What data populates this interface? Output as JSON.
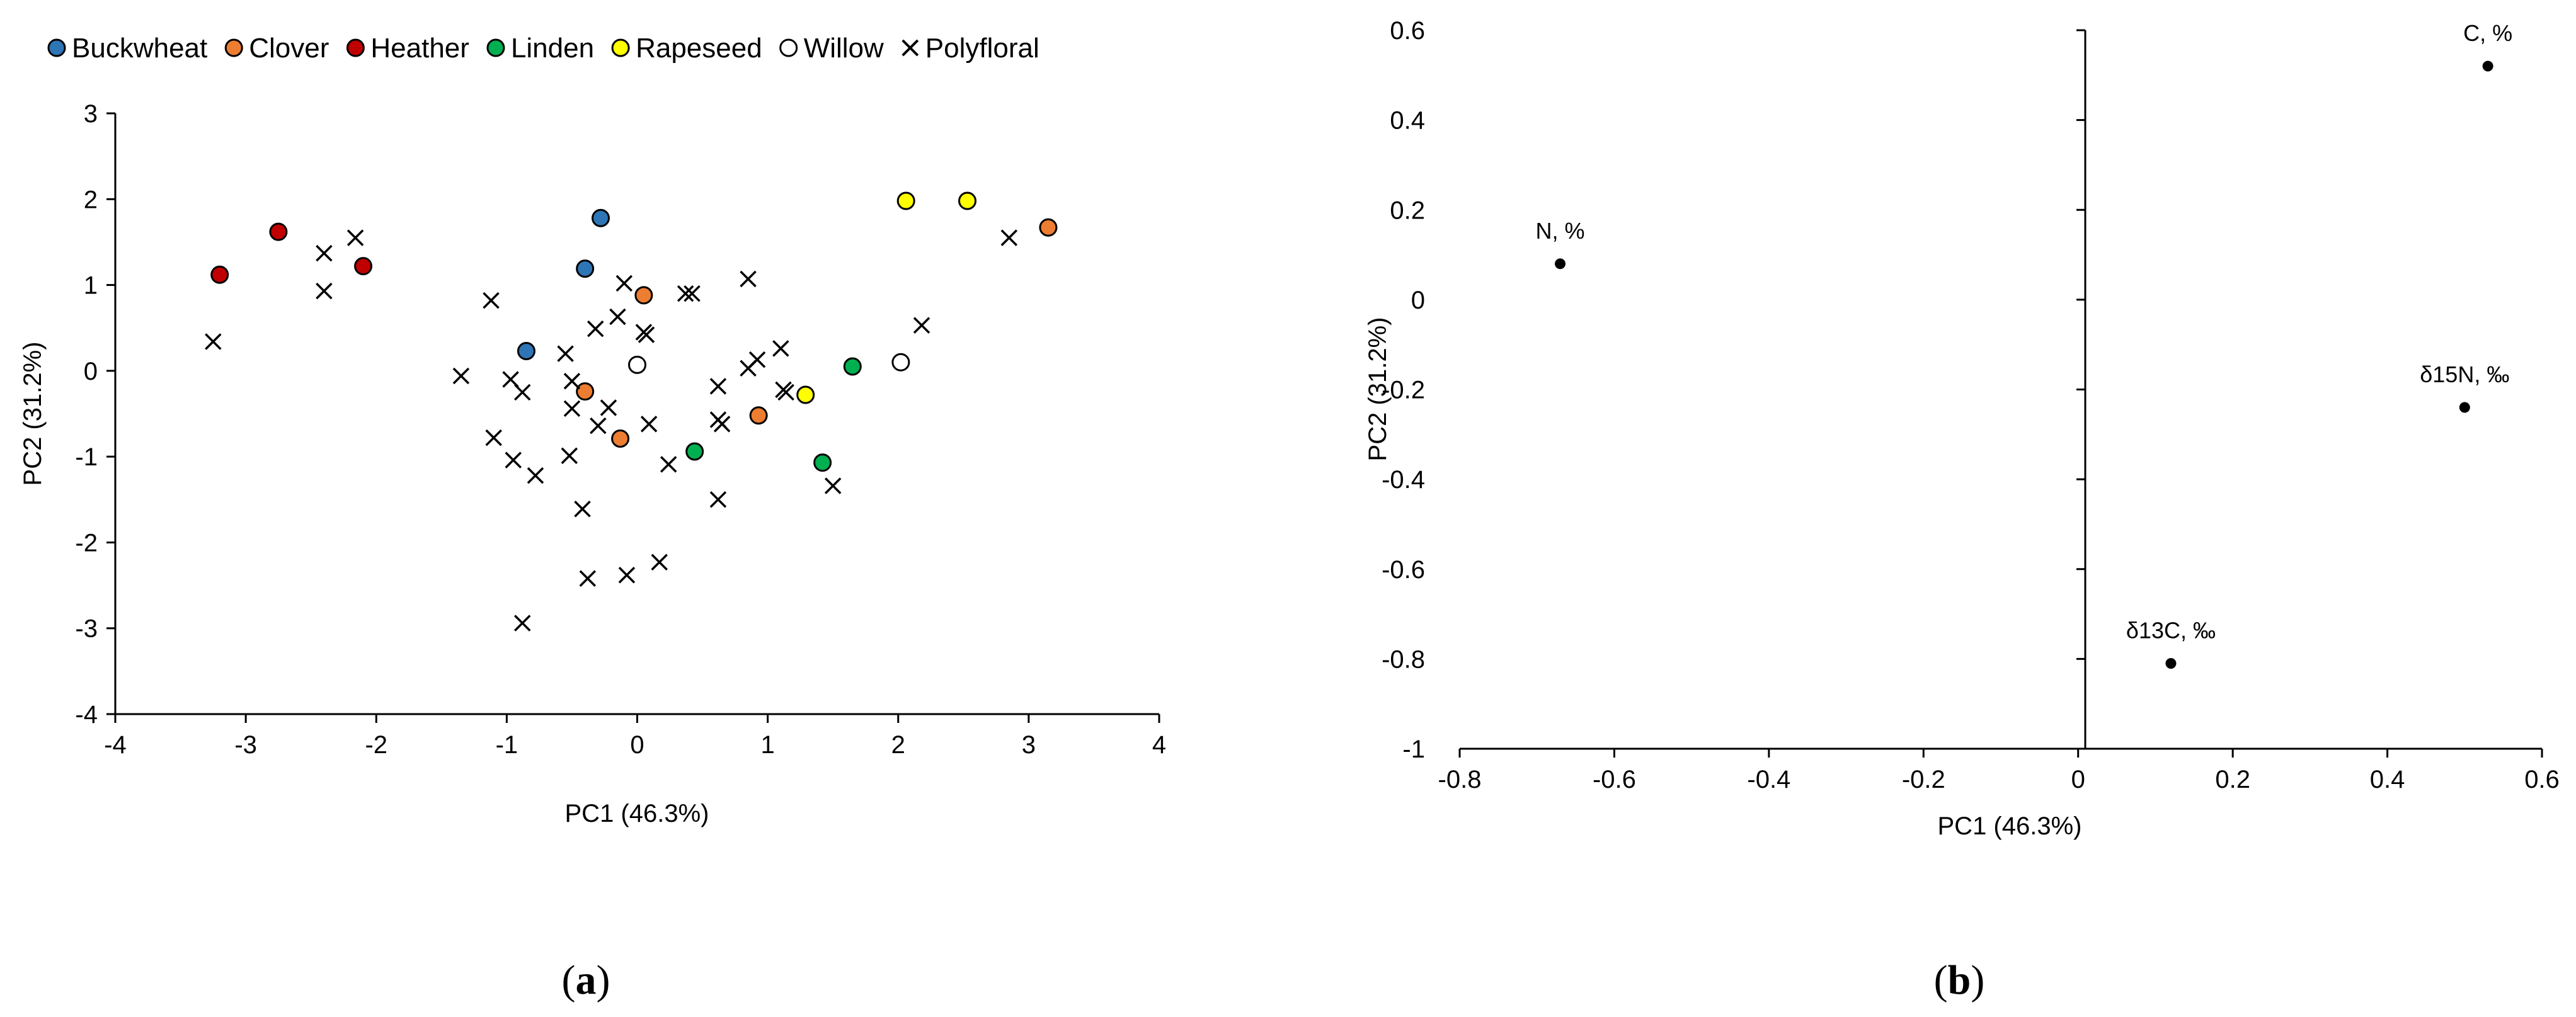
{
  "chart_data": [
    {
      "type": "scatter",
      "panel_label": "(a)",
      "panel_letter": "a",
      "xlabel": "PC1 (46.3%)",
      "ylabel": "PC2 (31.2%)",
      "xlim": [
        -4,
        4
      ],
      "ylim": [
        -4,
        3
      ],
      "xticks": [
        -4,
        -3,
        -2,
        -1,
        0,
        1,
        2,
        3,
        4
      ],
      "yticks": [
        -4,
        -3,
        -2,
        -1,
        0,
        1,
        2,
        3
      ],
      "grid": false,
      "legend_position": "top",
      "series": [
        {
          "name": "Buckwheat",
          "marker": "circle",
          "color": "#2e75b6",
          "points": [
            [
              -0.28,
              1.78
            ],
            [
              -0.4,
              1.19
            ],
            [
              -0.85,
              0.23
            ]
          ]
        },
        {
          "name": "Clover",
          "marker": "circle",
          "color": "#ed7d31",
          "points": [
            [
              0.05,
              0.88
            ],
            [
              -0.4,
              -0.24
            ],
            [
              -0.13,
              -0.79
            ],
            [
              0.93,
              -0.52
            ],
            [
              3.15,
              1.67
            ]
          ]
        },
        {
          "name": "Heather",
          "marker": "circle",
          "color": "#c00000",
          "points": [
            [
              -3.2,
              1.12
            ],
            [
              -2.75,
              1.62
            ],
            [
              -2.1,
              1.22
            ]
          ]
        },
        {
          "name": "Linden",
          "marker": "circle",
          "color": "#00b050",
          "points": [
            [
              0.44,
              -0.94
            ],
            [
              1.65,
              0.05
            ],
            [
              1.42,
              -1.07
            ]
          ]
        },
        {
          "name": "Rapeseed",
          "marker": "circle",
          "color": "#ffff00",
          "points": [
            [
              2.06,
              1.98
            ],
            [
              2.53,
              1.98
            ],
            [
              1.29,
              -0.28
            ]
          ]
        },
        {
          "name": "Willow",
          "marker": "circle",
          "color": "#ffffff",
          "points": [
            [
              0.0,
              0.07
            ],
            [
              2.02,
              0.1
            ]
          ]
        },
        {
          "name": "Polyfloral",
          "marker": "x",
          "color": "#000000",
          "points": [
            [
              -3.25,
              0.34
            ],
            [
              -2.4,
              1.37
            ],
            [
              -2.4,
              0.93
            ],
            [
              -2.16,
              1.55
            ],
            [
              -1.35,
              -0.06
            ],
            [
              -1.12,
              0.82
            ],
            [
              -1.1,
              -0.78
            ],
            [
              -0.97,
              -0.1
            ],
            [
              -0.95,
              -1.04
            ],
            [
              -0.88,
              -0.25
            ],
            [
              -0.78,
              -1.22
            ],
            [
              -0.88,
              -2.94
            ],
            [
              -0.55,
              0.2
            ],
            [
              -0.5,
              -0.12
            ],
            [
              -0.5,
              -0.44
            ],
            [
              -0.52,
              -0.99
            ],
            [
              -0.42,
              -1.61
            ],
            [
              -0.38,
              -2.42
            ],
            [
              -0.32,
              0.49
            ],
            [
              -0.3,
              -0.64
            ],
            [
              -0.22,
              -0.43
            ],
            [
              -0.15,
              0.63
            ],
            [
              -0.1,
              1.02
            ],
            [
              -0.08,
              -2.38
            ],
            [
              0.05,
              0.45
            ],
            [
              0.07,
              0.42
            ],
            [
              0.09,
              -0.62
            ],
            [
              0.17,
              -2.23
            ],
            [
              0.24,
              -1.09
            ],
            [
              0.37,
              0.9
            ],
            [
              0.42,
              0.9
            ],
            [
              0.62,
              -0.18
            ],
            [
              0.62,
              -0.57
            ],
            [
              0.65,
              -0.62
            ],
            [
              0.62,
              -1.5
            ],
            [
              0.85,
              1.07
            ],
            [
              0.85,
              0.03
            ],
            [
              0.92,
              0.13
            ],
            [
              1.1,
              0.26
            ],
            [
              1.12,
              -0.22
            ],
            [
              1.14,
              -0.25
            ],
            [
              1.5,
              -1.34
            ],
            [
              2.18,
              0.53
            ],
            [
              2.85,
              1.55
            ]
          ]
        }
      ]
    },
    {
      "type": "scatter",
      "panel_label": "(b)",
      "panel_letter": "b",
      "xlabel": "PC1 (46.3%)",
      "ylabel": "PC2 (31.2%)",
      "xlim": [
        -0.8,
        0.6
      ],
      "ylim": [
        -1,
        0.6
      ],
      "xticks": [
        -0.8,
        -0.6,
        -0.4,
        -0.2,
        0,
        0.2,
        0.4,
        0.6
      ],
      "xtick_labels": [
        "-0.8",
        "-0.6",
        "-0.4",
        "-0.2",
        "0",
        "0.2",
        "0.4",
        "0.6"
      ],
      "yticks": [
        -1,
        -0.8,
        -0.6,
        -0.4,
        -0.2,
        0,
        0.2,
        0.4,
        0.6
      ],
      "ytick_labels": [
        "-1",
        "-0.8",
        "-0.6",
        "-0.4",
        "-0.2",
        "0",
        "0.2",
        "0.4",
        "0.6"
      ],
      "grid": false,
      "points": [
        {
          "label": "N, %",
          "x": -0.67,
          "y": 0.08
        },
        {
          "label": "C, %",
          "x": 0.53,
          "y": 0.52
        },
        {
          "label": "δ15N, ‰",
          "x": 0.5,
          "y": -0.24
        },
        {
          "label": "δ13C, ‰",
          "x": 0.12,
          "y": -0.81
        }
      ]
    }
  ]
}
